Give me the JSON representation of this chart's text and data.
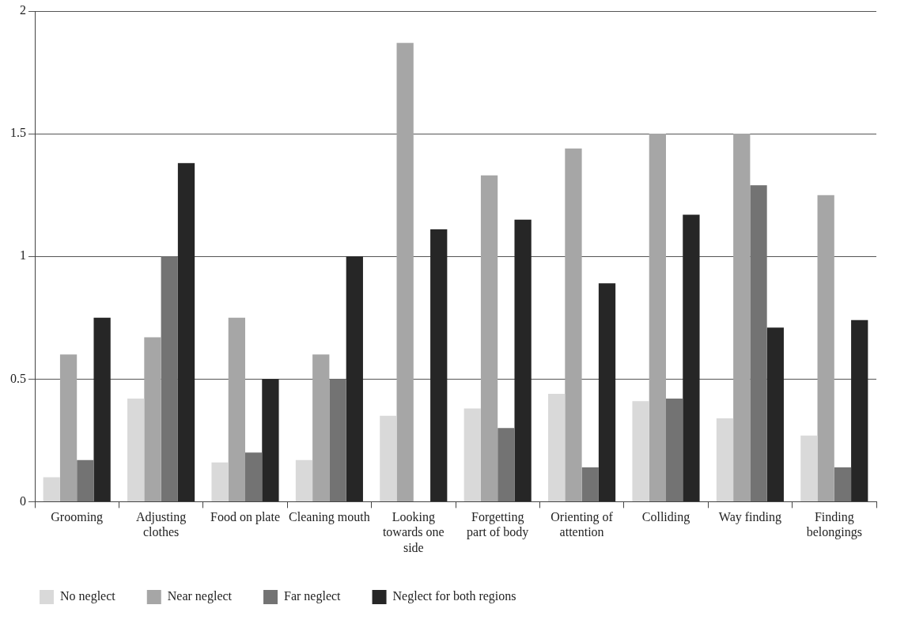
{
  "chart_data": {
    "type": "bar",
    "categories": [
      "Grooming",
      "Adjusting clothes",
      "Food on plate",
      "Cleaning mouth",
      "Looking towards one side",
      "Forgetting part of body",
      "Orienting of attention",
      "Colliding",
      "Way finding",
      "Finding belongings"
    ],
    "series": [
      {
        "name": "No neglect",
        "color": "#d9d9d9",
        "values": [
          0.1,
          0.42,
          0.16,
          0.17,
          0.35,
          0.38,
          0.44,
          0.41,
          0.34,
          0.27
        ]
      },
      {
        "name": "Near neglect",
        "color": "#a6a6a6",
        "values": [
          0.6,
          0.67,
          0.75,
          0.6,
          1.87,
          1.33,
          1.44,
          1.5,
          1.5,
          1.25
        ]
      },
      {
        "name": "Far neglect",
        "color": "#737373",
        "values": [
          0.17,
          1.0,
          0.2,
          0.5,
          0,
          0.3,
          0.14,
          0.42,
          1.29,
          0.14
        ]
      },
      {
        "name": "Neglect for both regions",
        "color": "#262626",
        "values": [
          0.75,
          1.38,
          0.5,
          1.0,
          1.11,
          1.15,
          0.89,
          1.17,
          0.71,
          0.74
        ]
      }
    ],
    "ylim": [
      0,
      2
    ],
    "yticks": [
      0,
      0.5,
      1,
      1.5,
      2
    ],
    "grid": "y",
    "legend": "bottom left"
  }
}
